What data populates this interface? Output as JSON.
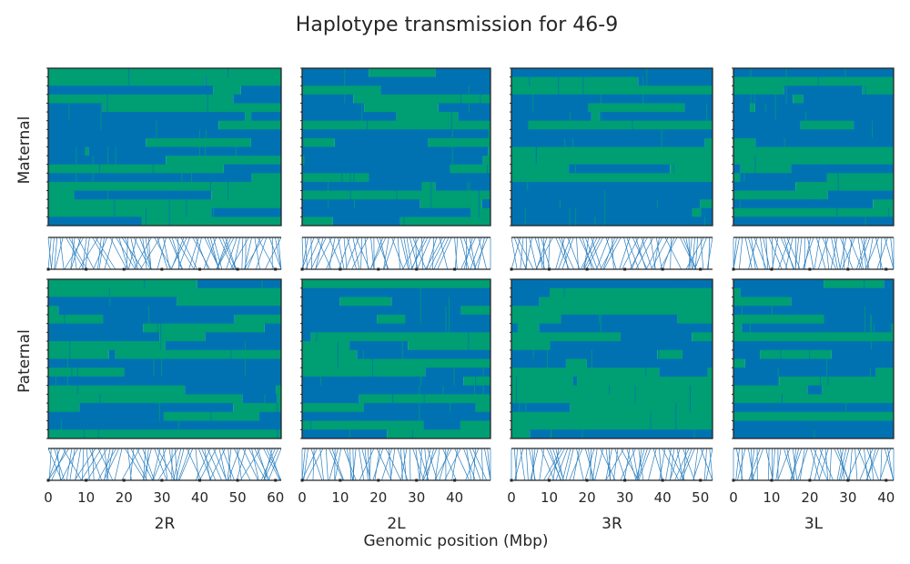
{
  "chart_data": {
    "type": "heatmap",
    "title": "Haplotype transmission for 46-9",
    "xlabel": "Genomic position (Mbp)",
    "row_labels": [
      "Maternal",
      "Paternal"
    ],
    "colors": {
      "state_a": "#0072b2",
      "state_b": "#009e73",
      "link": "#2a7fc0",
      "frame": "#262626"
    },
    "n_haplotypes": 18,
    "panels": [
      {
        "name": "2R",
        "xlim": [
          0,
          61.5
        ],
        "xticks": [
          0,
          10,
          20,
          30,
          40,
          50,
          60
        ]
      },
      {
        "name": "2L",
        "xlim": [
          0,
          49.4
        ],
        "xticks": [
          0,
          10,
          20,
          30,
          40
        ]
      },
      {
        "name": "3R",
        "xlim": [
          0,
          53.2
        ],
        "xticks": [
          0,
          10,
          20,
          30,
          40,
          50
        ]
      },
      {
        "name": "3L",
        "xlim": [
          0,
          41.96
        ],
        "xticks": [
          0,
          10,
          20,
          30,
          40
        ]
      }
    ]
  }
}
